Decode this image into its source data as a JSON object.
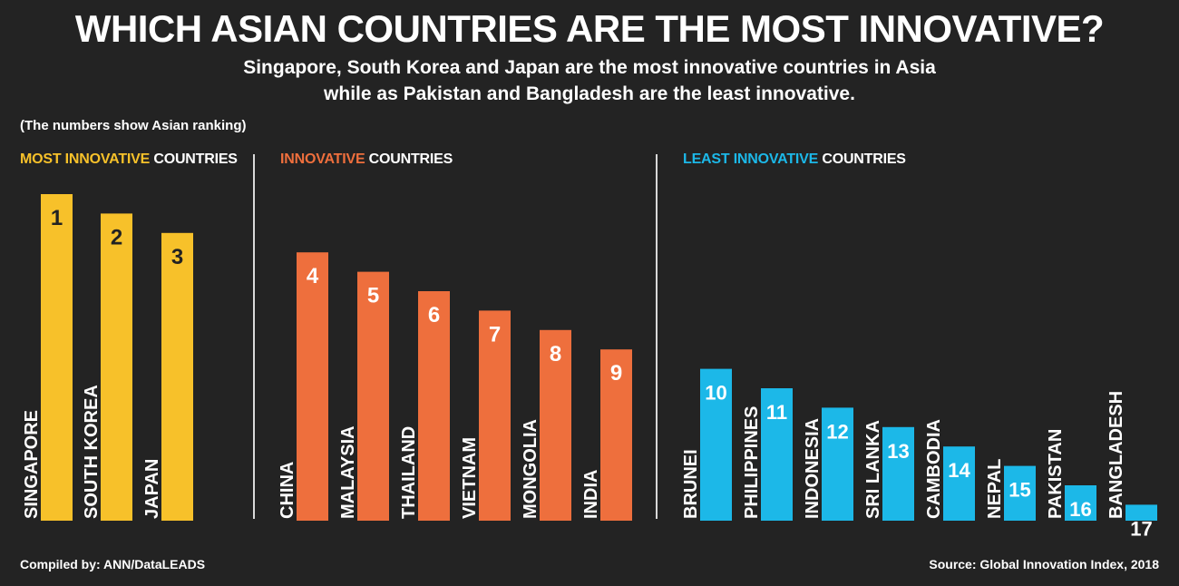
{
  "title": "WHICH ASIAN COUNTRIES ARE THE MOST INNOVATIVE?",
  "subtitle_line1": "Singapore, South Korea and Japan are the most innovative countries in Asia",
  "subtitle_line2": "while as Pakistan and Bangladesh are the least innovative.",
  "note": "(The numbers show Asian ranking)",
  "sections": [
    {
      "highlight": "MOST INNOVATIVE",
      "rest": " COUNTRIES",
      "color": "#f7c12a"
    },
    {
      "highlight": "INNOVATIVE",
      "rest": " COUNTRIES",
      "color": "#ee6f3d"
    },
    {
      "highlight": "LEAST INNOVATIVE",
      "rest": " COUNTRIES",
      "color": "#1cb8e8"
    }
  ],
  "footer_left": "Compiled by: ANN/DataLEADS",
  "footer_right": "Source: Global Innovation Index, 2018",
  "chart_data": {
    "type": "bar",
    "categories": [
      "SINGAPORE",
      "SOUTH KOREA",
      "JAPAN",
      "CHINA",
      "MALAYSIA",
      "THAILAND",
      "VIETNAM",
      "MONGOLIA",
      "INDIA",
      "BRUNEI",
      "PHILIPPINES",
      "INDONESIA",
      "SRI LANKA",
      "CAMBODIA",
      "NEPAL",
      "PAKISTAN",
      "BANGLADESH"
    ],
    "values": [
      1,
      2,
      3,
      4,
      5,
      6,
      7,
      8,
      9,
      10,
      11,
      12,
      13,
      14,
      15,
      16,
      17
    ],
    "groups": [
      0,
      0,
      0,
      1,
      1,
      1,
      1,
      1,
      1,
      2,
      2,
      2,
      2,
      2,
      2,
      2,
      2
    ],
    "colors": [
      "#f7c12a",
      "#ee6f3d",
      "#1cb8e8"
    ]
  }
}
